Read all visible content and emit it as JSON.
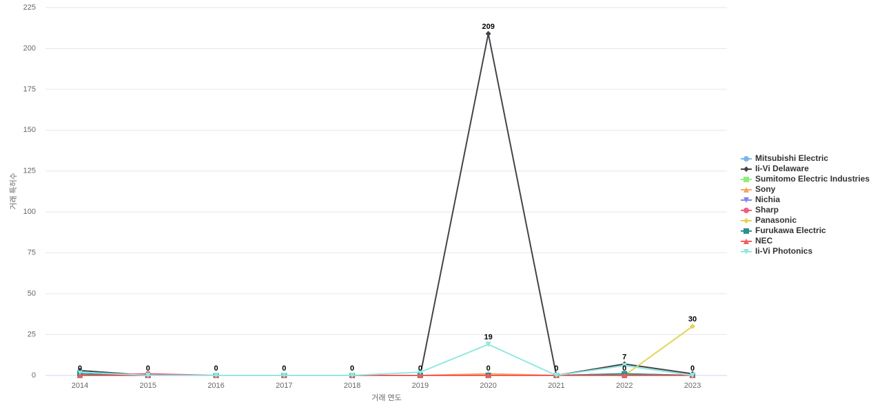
{
  "chart_data": {
    "type": "line",
    "x_label": "거래 연도",
    "y_label": "거래 특허수",
    "categories": [
      "2014",
      "2015",
      "2016",
      "2017",
      "2018",
      "2019",
      "2020",
      "2021",
      "2022",
      "2023"
    ],
    "ylim": [
      0,
      225
    ],
    "yticks": [
      0,
      25,
      50,
      75,
      100,
      125,
      150,
      175,
      200,
      225
    ],
    "grid": true,
    "legend": "right",
    "series": [
      {
        "name": "Mitsubishi Electric",
        "color": "#7cb5ec",
        "marker": "circle",
        "values": [
          0,
          0,
          0,
          0,
          0,
          0,
          0,
          0,
          1,
          0
        ]
      },
      {
        "name": "Ii-Vi Delaware",
        "color": "#434348",
        "marker": "diamond",
        "values": [
          3,
          0,
          0,
          0,
          0,
          0,
          209,
          0,
          7,
          1
        ],
        "labeled": [
          6,
          8
        ]
      },
      {
        "name": "Sumitomo Electric Industries",
        "color": "#90ed7d",
        "marker": "square",
        "values": [
          0,
          0,
          0,
          0,
          0,
          0,
          0,
          0,
          0,
          0
        ]
      },
      {
        "name": "Sony",
        "color": "#f7a35c",
        "marker": "triangle",
        "values": [
          0,
          0,
          0,
          0,
          0,
          0,
          1,
          0,
          0,
          0
        ]
      },
      {
        "name": "Nichia",
        "color": "#8085e9",
        "marker": "triangle-down",
        "values": [
          0,
          0,
          0,
          0,
          0,
          0,
          0,
          0,
          0,
          0
        ]
      },
      {
        "name": "Sharp",
        "color": "#f15c80",
        "marker": "circle",
        "values": [
          0,
          1,
          0,
          0,
          0,
          0,
          0,
          0,
          0,
          0
        ]
      },
      {
        "name": "Panasonic",
        "color": "#e4d354",
        "marker": "diamond",
        "values": [
          0,
          0,
          0,
          0,
          0,
          0,
          0,
          0,
          0,
          30
        ],
        "labeled": [
          9
        ]
      },
      {
        "name": "Furukawa Electric",
        "color": "#2b908f",
        "marker": "square",
        "values": [
          1,
          0,
          0,
          0,
          0,
          0,
          0,
          0,
          1,
          0
        ]
      },
      {
        "name": "NEC",
        "color": "#f45b5b",
        "marker": "triangle",
        "values": [
          0,
          0,
          0,
          0,
          0,
          0,
          0,
          0,
          0,
          0
        ],
        "labeled": [
          0,
          1,
          2,
          3,
          4,
          5,
          6,
          7,
          8,
          9
        ]
      },
      {
        "name": "Ii-Vi Photonics",
        "color": "#91e8e1",
        "marker": "triangle-down",
        "values": [
          2,
          0,
          0,
          0,
          0,
          2,
          19,
          0,
          6,
          0
        ],
        "labeled": [
          6
        ]
      }
    ]
  }
}
